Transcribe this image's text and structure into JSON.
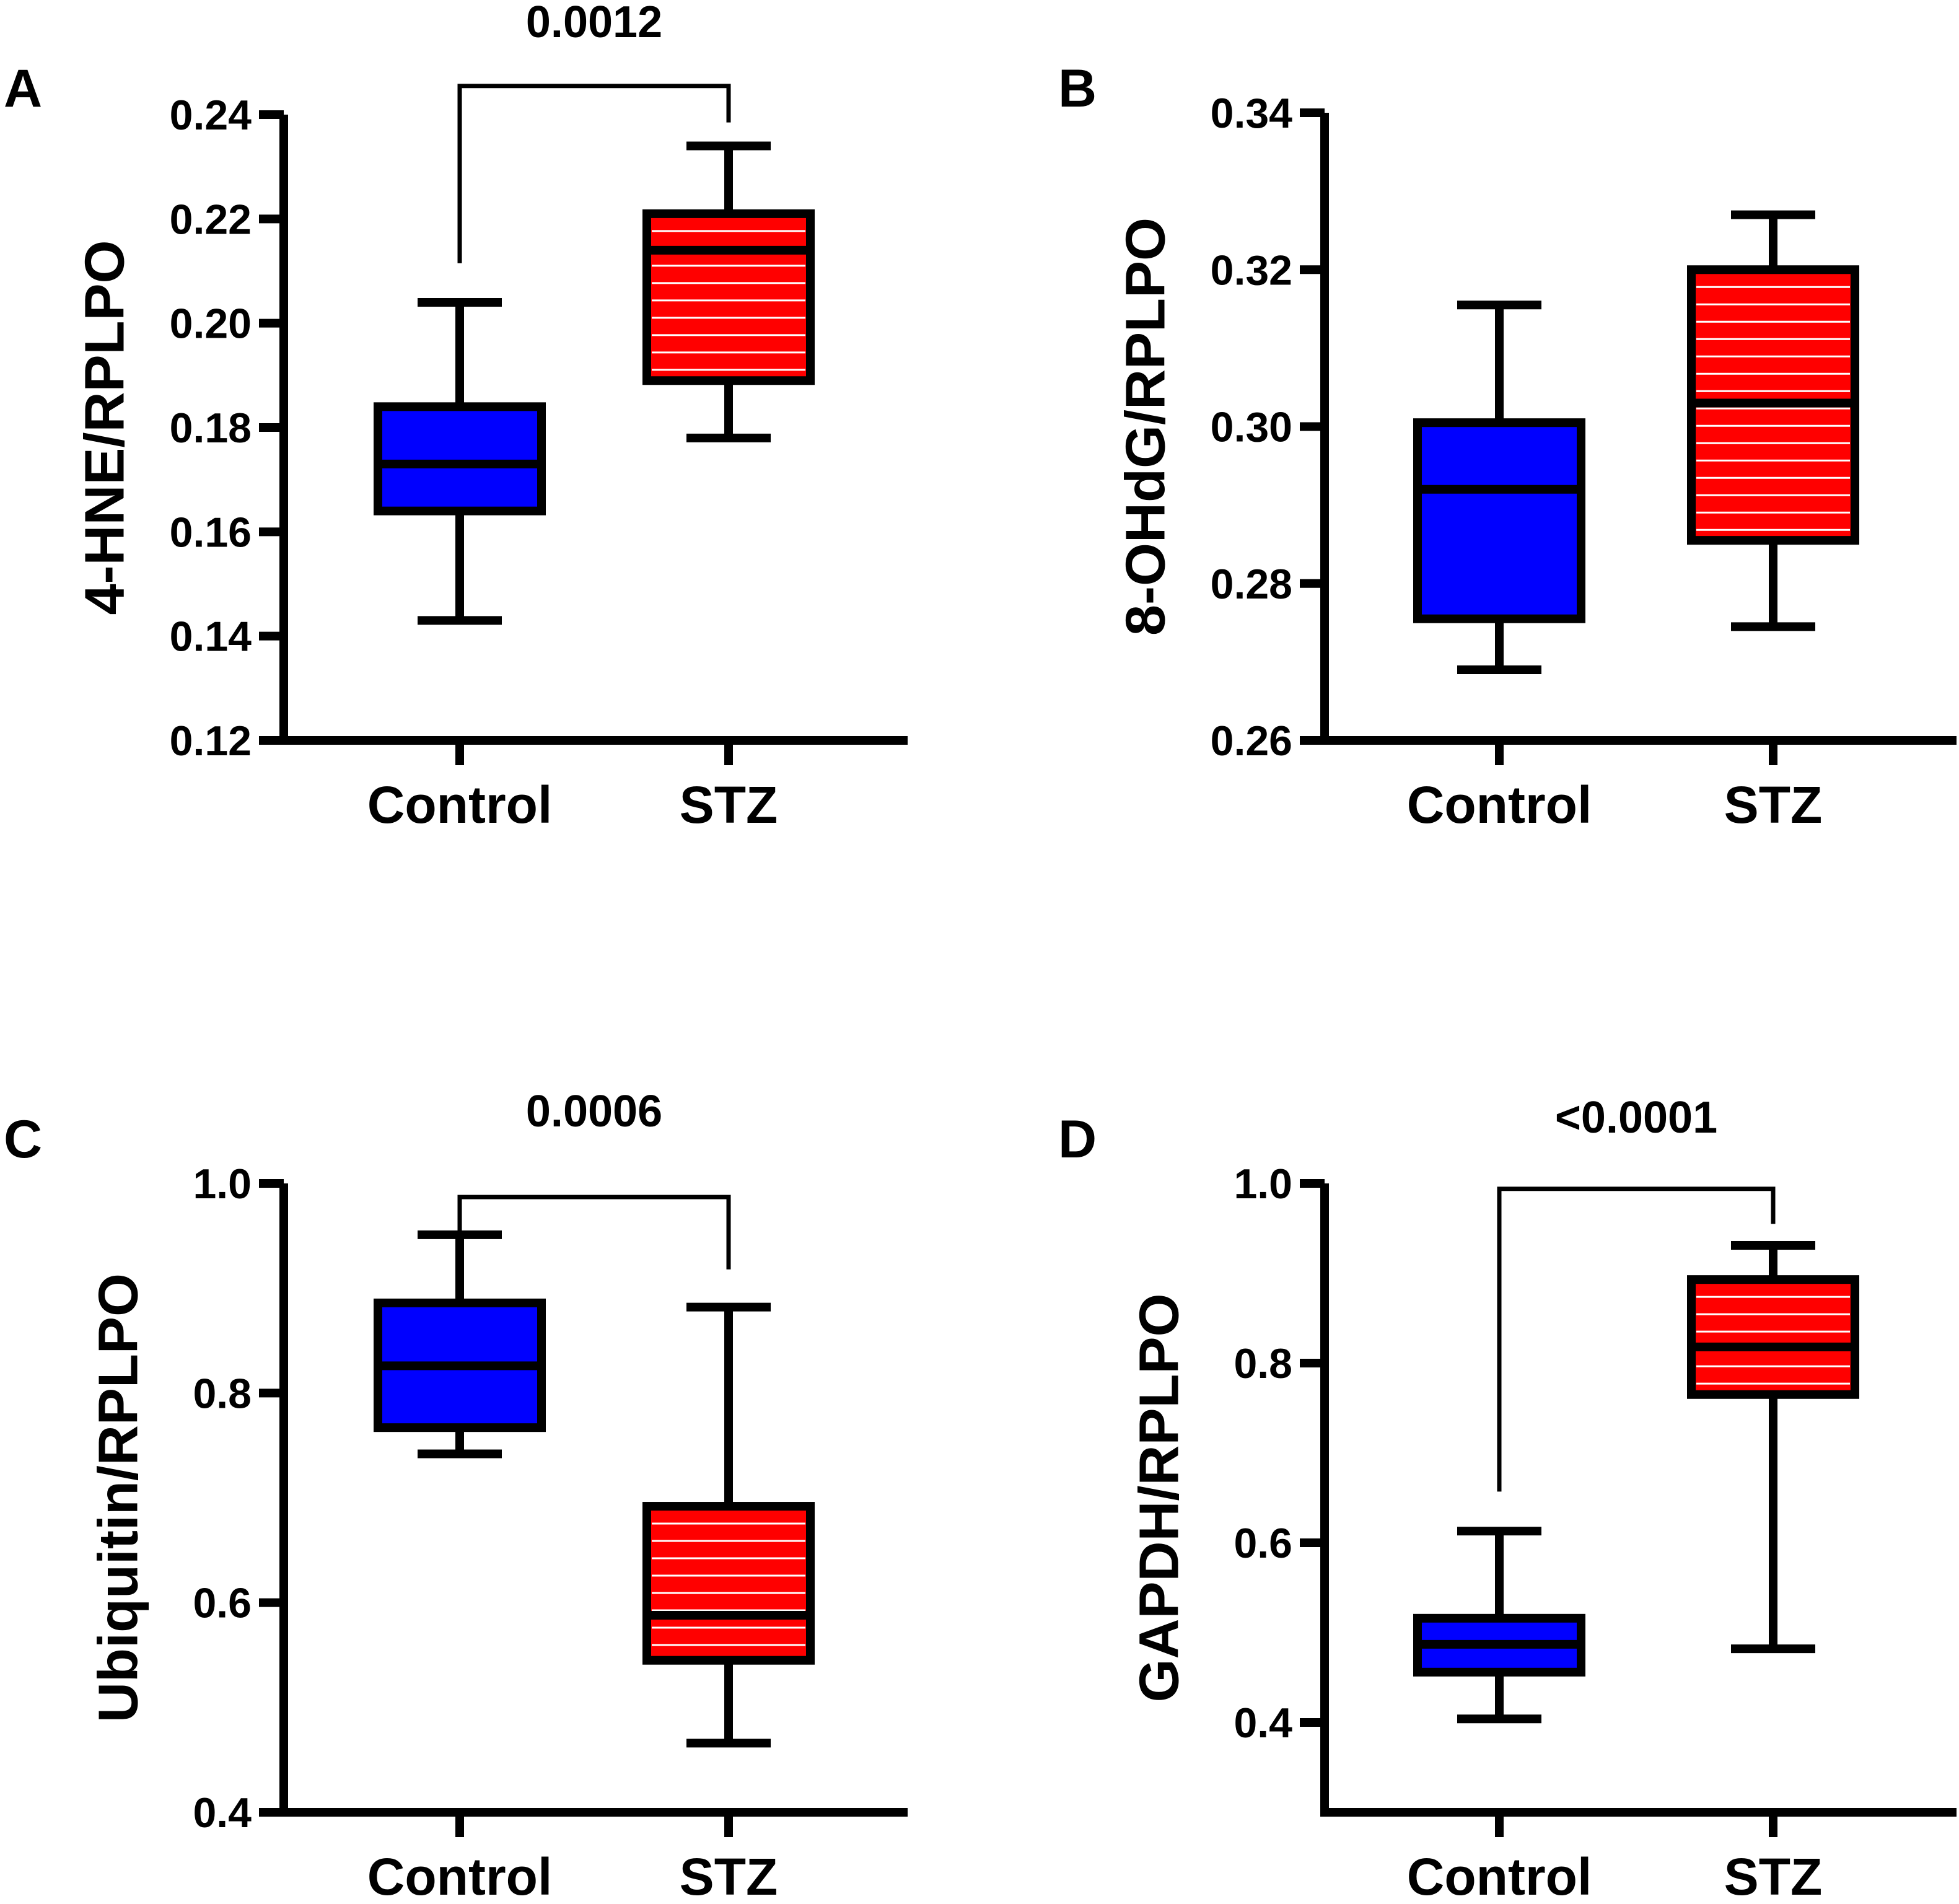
{
  "colors": {
    "control": "#0000ff",
    "stz": "#ff0000",
    "stroke": "#000000",
    "stripe": "#ffffff"
  },
  "chart_data": [
    {
      "panel": "A",
      "type": "box",
      "ylabel": "4-HNE/RPLPO",
      "ylim": [
        0.12,
        0.24
      ],
      "ticks": [
        "0.12",
        "0.14",
        "0.16",
        "0.18",
        "0.20",
        "0.22",
        "0.24"
      ],
      "tick_values": [
        0.12,
        0.14,
        0.16,
        0.18,
        0.2,
        0.22,
        0.24
      ],
      "categories": [
        "Control",
        "STZ"
      ],
      "boxes": [
        {
          "group": "Control",
          "min": 0.143,
          "q1": 0.164,
          "median": 0.173,
          "q3": 0.184,
          "max": 0.204
        },
        {
          "group": "STZ",
          "min": 0.178,
          "q1": 0.189,
          "median": 0.214,
          "q3": 0.221,
          "max": 0.234
        }
      ],
      "significance": {
        "label": "0.0012",
        "bracket_top": 0.2455,
        "left_end": 0.2115,
        "right_end": 0.2385
      }
    },
    {
      "panel": "B",
      "type": "box",
      "ylabel": "8-OHdG/RPLPO",
      "ylim": [
        0.26,
        0.34
      ],
      "ticks": [
        "0.26",
        "0.28",
        "0.30",
        "0.32",
        "0.34"
      ],
      "tick_values": [
        0.26,
        0.28,
        0.3,
        0.32,
        0.34
      ],
      "categories": [
        "Control",
        "STZ"
      ],
      "boxes": [
        {
          "group": "Control",
          "min": 0.269,
          "q1": 0.2755,
          "median": 0.292,
          "q3": 0.3005,
          "max": 0.3155
        },
        {
          "group": "STZ",
          "min": 0.2745,
          "q1": 0.2855,
          "median": 0.303,
          "q3": 0.32,
          "max": 0.327
        }
      ],
      "significance": null
    },
    {
      "panel": "C",
      "type": "box",
      "ylabel": "Ubiquitin/RPLPO",
      "ylim": [
        0.4,
        1.0
      ],
      "ticks": [
        "0.4",
        "0.6",
        "0.8",
        "1.0"
      ],
      "tick_values": [
        0.4,
        0.6,
        0.8,
        1.0
      ],
      "categories": [
        "Control",
        "STZ"
      ],
      "boxes": [
        {
          "group": "Control",
          "min": 0.742,
          "q1": 0.767,
          "median": 0.826,
          "q3": 0.886,
          "max": 0.951
        },
        {
          "group": "STZ",
          "min": 0.466,
          "q1": 0.545,
          "median": 0.588,
          "q3": 0.692,
          "max": 0.882
        }
      ],
      "significance": {
        "label": "0.0006",
        "bracket_top": 0.987,
        "left_end": 0.952,
        "right_end": 0.918
      }
    },
    {
      "panel": "D",
      "type": "box",
      "ylabel": "GAPDH/RPLPO",
      "ylim": [
        0.3,
        1.0
      ],
      "ticks": [
        "0.4",
        "0.6",
        "0.8",
        "1.0"
      ],
      "tick_values": [
        0.4,
        0.6,
        0.8,
        1.0
      ],
      "categories": [
        "Control",
        "STZ"
      ],
      "boxes": [
        {
          "group": "Control",
          "min": 0.404,
          "q1": 0.456,
          "median": 0.487,
          "q3": 0.516,
          "max": 0.613
        },
        {
          "group": "STZ",
          "min": 0.482,
          "q1": 0.765,
          "median": 0.818,
          "q3": 0.893,
          "max": 0.931
        }
      ],
      "significance": {
        "label": "<0.0001",
        "bracket_top": 0.994,
        "left_end": 0.657,
        "right_end": 0.955
      }
    }
  ]
}
